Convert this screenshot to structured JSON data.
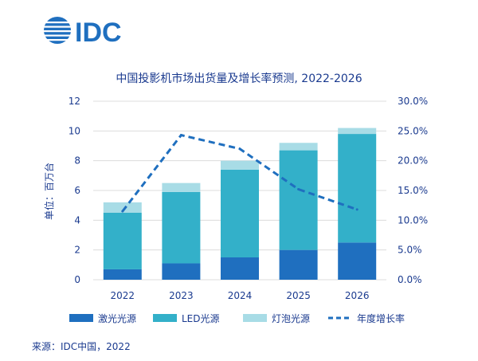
{
  "logo": {
    "text": "IDC",
    "color": "#1f6fbf"
  },
  "source_text": "来源：IDC中国，2022",
  "chart_data": {
    "type": "bar",
    "title": "中国投影机市场出货量及增长率预测, 2022-2026",
    "ylabel": "单位：百万台",
    "categories": [
      "2022",
      "2023",
      "2024",
      "2025",
      "2026"
    ],
    "ylim": [
      0,
      12
    ],
    "y_ticks": [
      "0",
      "2",
      "4",
      "6",
      "8",
      "10",
      "12"
    ],
    "y2lim": [
      0,
      30
    ],
    "y2_ticks": [
      "0.0%",
      "5.0%",
      "10.0%",
      "15.0%",
      "20.0%",
      "25.0%",
      "30.0%"
    ],
    "grid": true,
    "legend_position": "bottom",
    "stacked": true,
    "series": [
      {
        "name": "激光光源",
        "values": [
          0.7,
          1.1,
          1.5,
          2.0,
          2.5
        ],
        "color": "#1f6fbf"
      },
      {
        "name": "LED光源",
        "values": [
          3.8,
          4.8,
          5.9,
          6.7,
          7.3
        ],
        "color": "#33b0c9"
      },
      {
        "name": "灯泡光源",
        "values": [
          0.7,
          0.6,
          0.6,
          0.5,
          0.4
        ],
        "color": "#a8dce6"
      }
    ],
    "line_series": {
      "name": "年度增长率",
      "values": [
        11.5,
        24.3,
        22.0,
        15.2,
        11.8
      ],
      "color": "#1f6fbf",
      "axis": "right"
    }
  }
}
